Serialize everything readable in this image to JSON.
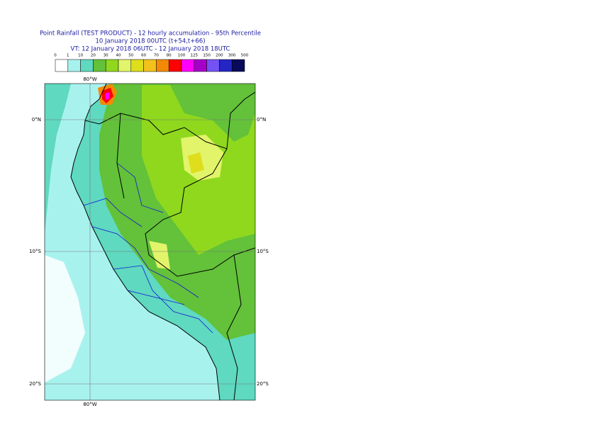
{
  "header": {
    "title": "Point Rainfall (TEST PRODUCT) - 12 hourly accumulation - 95th Percentile",
    "run": "10 January 2018 00UTC (t+54,t+66)",
    "validity": "VT: 12 January 2018 06UTC - 12 January 2018 18UTC"
  },
  "legend": {
    "levels": [
      0,
      1,
      10,
      20,
      30,
      40,
      50,
      60,
      70,
      80,
      100,
      125,
      150,
      200,
      300,
      500
    ],
    "colors": [
      "#ffffff",
      "#a8f2ee",
      "#5fd9bf",
      "#63c13a",
      "#8fd81e",
      "#e2f46a",
      "#dede1c",
      "#f2c21c",
      "#f28a06",
      "#fe0000",
      "#ff00ff",
      "#a400c8",
      "#7452f4",
      "#2426c4",
      "#0a0a5a"
    ]
  },
  "map": {
    "lon_labels": [
      "80°W"
    ],
    "lat_labels": [
      "0°N",
      "10°S",
      "20°S"
    ]
  }
}
